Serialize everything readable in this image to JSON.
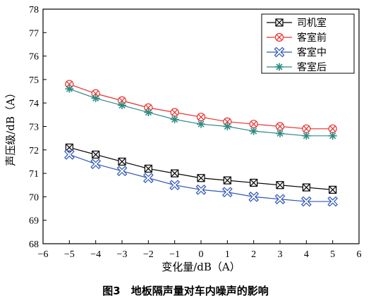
{
  "chart_data": {
    "type": "line",
    "xlabel": "变化量/dB（A）",
    "ylabel": "声压级/dB（A）",
    "caption": "图3　地板隔声量对车内噪声的影响",
    "xlim": [
      -6,
      6
    ],
    "ylim": [
      68,
      78
    ],
    "x_ticks": [
      -6,
      -5,
      -4,
      -3,
      -2,
      -1,
      0,
      1,
      2,
      3,
      4,
      5,
      6
    ],
    "y_ticks": [
      68,
      69,
      70,
      71,
      72,
      73,
      74,
      75,
      76,
      77,
      78
    ],
    "x": [
      -5,
      -4,
      -3,
      -2,
      -1,
      0,
      1,
      2,
      3,
      4,
      5
    ],
    "legend_position": "top-right",
    "grid": false,
    "series": [
      {
        "name": "司机室",
        "color": "#000000",
        "marker": "box-x",
        "values": [
          72.1,
          71.8,
          71.5,
          71.2,
          71.0,
          70.8,
          70.7,
          70.6,
          70.5,
          70.4,
          70.3
        ]
      },
      {
        "name": "客室前",
        "color": "#e8302c",
        "marker": "circle-x",
        "values": [
          74.8,
          74.4,
          74.1,
          73.8,
          73.6,
          73.4,
          73.2,
          73.1,
          73.0,
          72.9,
          72.9
        ]
      },
      {
        "name": "客室中",
        "color": "#2f56b8",
        "marker": "x",
        "values": [
          71.8,
          71.4,
          71.1,
          70.8,
          70.5,
          70.3,
          70.2,
          70.0,
          69.9,
          69.8,
          69.8
        ]
      },
      {
        "name": "客室后",
        "color": "#2e8b84",
        "marker": "star",
        "values": [
          74.6,
          74.2,
          73.9,
          73.6,
          73.3,
          73.1,
          73.0,
          72.8,
          72.7,
          72.6,
          72.6
        ]
      }
    ]
  }
}
